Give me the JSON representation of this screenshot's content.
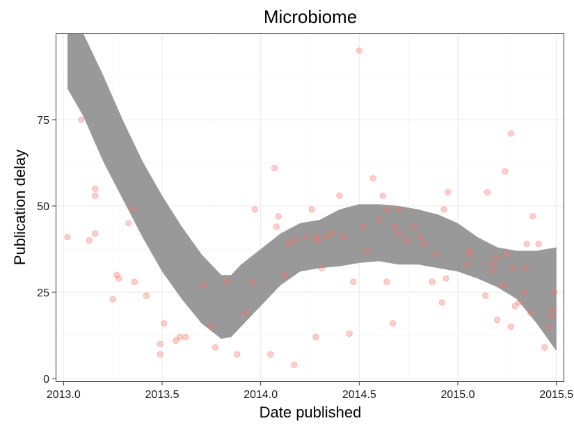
{
  "chart_data": {
    "type": "scatter",
    "title": "Microbiome",
    "xlabel": "Date published",
    "ylabel": "Publication delay",
    "xlim": [
      2012.96,
      2015.54
    ],
    "ylim": [
      -1,
      100
    ],
    "x_ticks": [
      2013.0,
      2013.5,
      2014.0,
      2014.5,
      2015.0,
      2015.5
    ],
    "x_tick_labels": [
      "2013.0",
      "2013.5",
      "2014.0",
      "2014.5",
      "2015.0",
      "2015.5"
    ],
    "y_ticks": [
      0,
      25,
      50,
      75
    ],
    "y_tick_labels": [
      "0",
      "25",
      "50",
      "75"
    ],
    "grid": true,
    "point_color": "#f8766d",
    "band_color": "#999999",
    "points": [
      [
        2013.02,
        41
      ],
      [
        2013.09,
        75
      ],
      [
        2013.13,
        40
      ],
      [
        2013.16,
        42
      ],
      [
        2013.16,
        55
      ],
      [
        2013.16,
        53
      ],
      [
        2013.25,
        23
      ],
      [
        2013.27,
        30
      ],
      [
        2013.28,
        29
      ],
      [
        2013.33,
        45
      ],
      [
        2013.35,
        49
      ],
      [
        2013.36,
        28
      ],
      [
        2013.42,
        24
      ],
      [
        2013.49,
        7
      ],
      [
        2013.49,
        10
      ],
      [
        2013.51,
        16
      ],
      [
        2013.57,
        11
      ],
      [
        2013.59,
        12
      ],
      [
        2013.62,
        12
      ],
      [
        2013.71,
        27
      ],
      [
        2013.75,
        15
      ],
      [
        2013.77,
        9
      ],
      [
        2013.83,
        28
      ],
      [
        2013.88,
        7
      ],
      [
        2013.92,
        19
      ],
      [
        2013.96,
        28
      ],
      [
        2013.97,
        49
      ],
      [
        2014.05,
        7
      ],
      [
        2014.07,
        61
      ],
      [
        2014.08,
        44
      ],
      [
        2014.09,
        47
      ],
      [
        2014.12,
        30
      ],
      [
        2014.14,
        39
      ],
      [
        2014.17,
        40
      ],
      [
        2014.17,
        4
      ],
      [
        2014.23,
        41
      ],
      [
        2014.26,
        49
      ],
      [
        2014.28,
        41
      ],
      [
        2014.28,
        12
      ],
      [
        2014.29,
        40
      ],
      [
        2014.31,
        32
      ],
      [
        2014.33,
        41
      ],
      [
        2014.36,
        42
      ],
      [
        2014.4,
        53
      ],
      [
        2014.42,
        41
      ],
      [
        2014.45,
        13
      ],
      [
        2014.47,
        28
      ],
      [
        2014.5,
        95
      ],
      [
        2014.52,
        44
      ],
      [
        2014.54,
        37
      ],
      [
        2014.57,
        58
      ],
      [
        2014.6,
        46
      ],
      [
        2014.62,
        53
      ],
      [
        2014.64,
        49
      ],
      [
        2014.64,
        28
      ],
      [
        2014.67,
        16
      ],
      [
        2014.68,
        44
      ],
      [
        2014.7,
        49
      ],
      [
        2014.7,
        42
      ],
      [
        2014.74,
        40
      ],
      [
        2014.78,
        44
      ],
      [
        2014.81,
        41
      ],
      [
        2014.83,
        39
      ],
      [
        2014.87,
        28
      ],
      [
        2014.89,
        36
      ],
      [
        2014.92,
        22
      ],
      [
        2014.93,
        49
      ],
      [
        2014.94,
        29
      ],
      [
        2014.95,
        54
      ],
      [
        2015.05,
        33
      ],
      [
        2015.06,
        36
      ],
      [
        2015.06,
        37
      ],
      [
        2015.14,
        24
      ],
      [
        2015.15,
        54
      ],
      [
        2015.17,
        33
      ],
      [
        2015.18,
        31
      ],
      [
        2015.19,
        35
      ],
      [
        2015.2,
        17
      ],
      [
        2015.23,
        27
      ],
      [
        2015.24,
        60
      ],
      [
        2015.25,
        36
      ],
      [
        2015.27,
        71
      ],
      [
        2015.27,
        15
      ],
      [
        2015.28,
        32
      ],
      [
        2015.29,
        21
      ],
      [
        2015.31,
        22
      ],
      [
        2015.34,
        25
      ],
      [
        2015.34,
        32
      ],
      [
        2015.35,
        39
      ],
      [
        2015.37,
        19
      ],
      [
        2015.38,
        47
      ],
      [
        2015.41,
        39
      ],
      [
        2015.44,
        9
      ],
      [
        2015.46,
        15
      ],
      [
        2015.47,
        18
      ],
      [
        2015.48,
        20
      ],
      [
        2015.49,
        25
      ]
    ],
    "band_upper": [
      [
        2013.02,
        100
      ],
      [
        2013.1,
        100
      ],
      [
        2013.2,
        88
      ],
      [
        2013.3,
        75
      ],
      [
        2013.4,
        63
      ],
      [
        2013.5,
        53
      ],
      [
        2013.6,
        44
      ],
      [
        2013.7,
        36
      ],
      [
        2013.8,
        30
      ],
      [
        2013.85,
        30
      ],
      [
        2013.9,
        33
      ],
      [
        2014.0,
        37.5
      ],
      [
        2014.1,
        42
      ],
      [
        2014.2,
        45
      ],
      [
        2014.3,
        46
      ],
      [
        2014.4,
        49
      ],
      [
        2014.5,
        50.5
      ],
      [
        2014.6,
        50.5
      ],
      [
        2014.7,
        50
      ],
      [
        2014.8,
        49
      ],
      [
        2014.9,
        47.5
      ],
      [
        2015.0,
        45
      ],
      [
        2015.1,
        41
      ],
      [
        2015.2,
        38
      ],
      [
        2015.3,
        37
      ],
      [
        2015.4,
        37
      ],
      [
        2015.5,
        38
      ]
    ],
    "band_lower": [
      [
        2013.02,
        84
      ],
      [
        2013.1,
        76
      ],
      [
        2013.2,
        63
      ],
      [
        2013.3,
        52
      ],
      [
        2013.4,
        41
      ],
      [
        2013.5,
        31
      ],
      [
        2013.6,
        23
      ],
      [
        2013.7,
        16
      ],
      [
        2013.8,
        11.5
      ],
      [
        2013.85,
        12
      ],
      [
        2013.9,
        15
      ],
      [
        2014.0,
        21
      ],
      [
        2014.1,
        27
      ],
      [
        2014.2,
        31
      ],
      [
        2014.3,
        32
      ],
      [
        2014.4,
        32.5
      ],
      [
        2014.5,
        33.5
      ],
      [
        2014.6,
        34
      ],
      [
        2014.7,
        33
      ],
      [
        2014.8,
        33
      ],
      [
        2014.9,
        32
      ],
      [
        2015.0,
        31
      ],
      [
        2015.1,
        29
      ],
      [
        2015.2,
        26.5
      ],
      [
        2015.3,
        23
      ],
      [
        2015.4,
        16
      ],
      [
        2015.5,
        8
      ]
    ]
  }
}
